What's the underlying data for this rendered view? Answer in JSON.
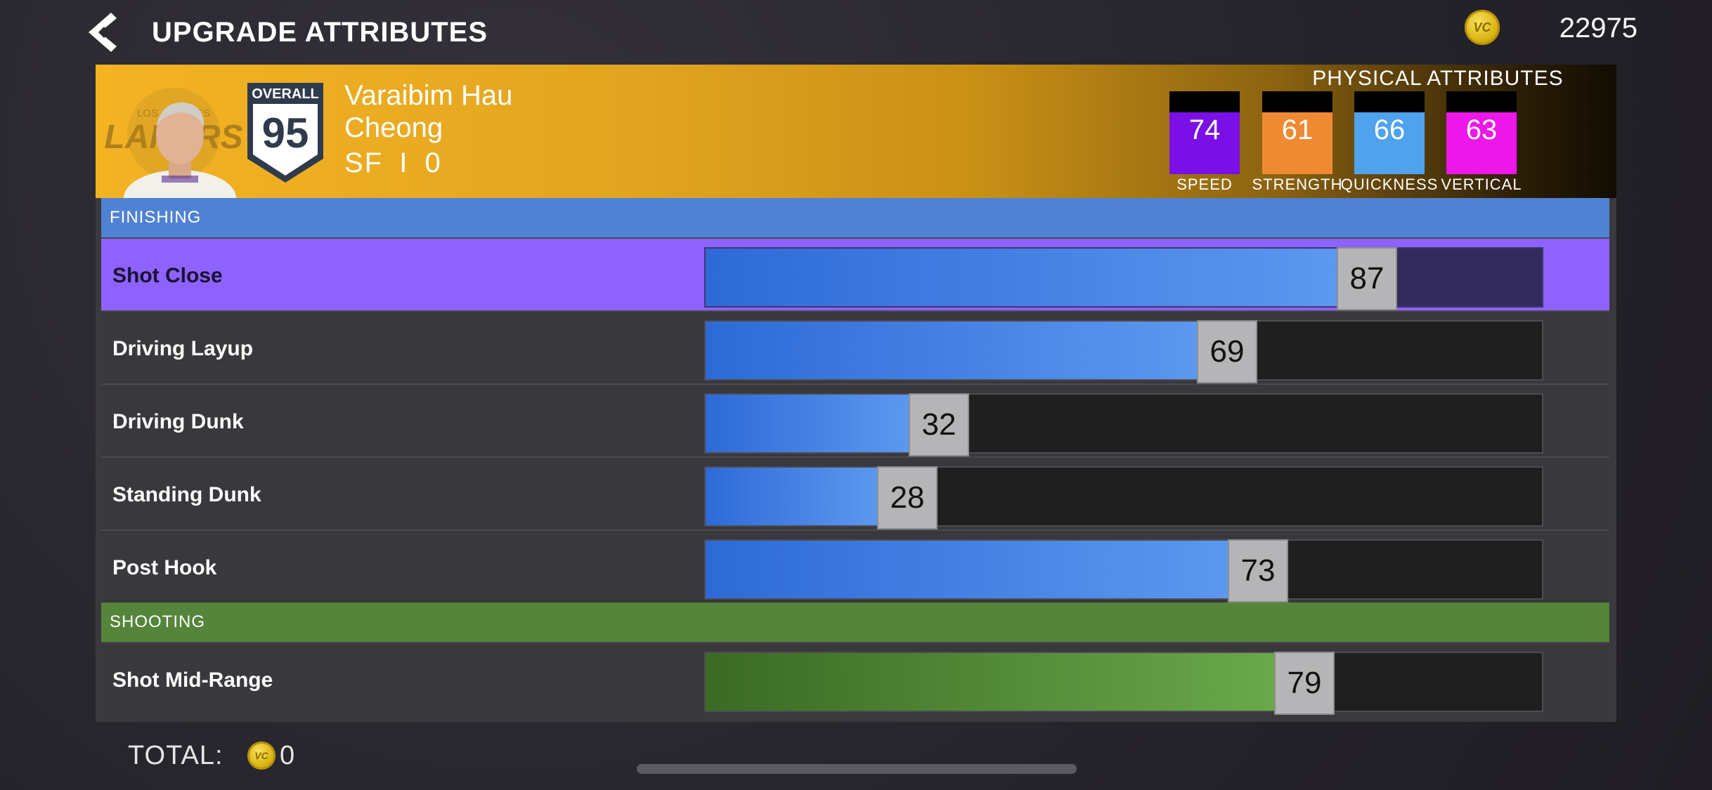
{
  "header": {
    "title": "UPGRADE ATTRIBUTES",
    "vc_balance": "22975",
    "vc_icon_text": "VC"
  },
  "player": {
    "overall_label": "OVERALL",
    "overall": "95",
    "first_name": "Varaibim Hau",
    "last_name": "Cheong",
    "position": "SF",
    "separator": "I",
    "number": "0",
    "team_logo_text": "LAKERS",
    "team_logo_city": "LOS ANGELES"
  },
  "physical": {
    "title": "PHYSICAL ATTRIBUTES",
    "items": [
      {
        "label": "SPEED",
        "value": "74",
        "color": "#7b10e6"
      },
      {
        "label": "STRENGTH",
        "value": "61",
        "color": "#ef8a33"
      },
      {
        "label": "QUICKNESS",
        "value": "66",
        "color": "#4fa3ec"
      },
      {
        "label": "VERTICAL",
        "value": "63",
        "color": "#ec17e8"
      }
    ]
  },
  "categories": {
    "finishing": {
      "label": "FINISHING",
      "color": "#4f82d3"
    },
    "shooting": {
      "label": "SHOOTING",
      "color": "#54853a"
    }
  },
  "attributes": [
    {
      "label": "Shot Close",
      "value": "87",
      "fraction": 0.87,
      "category": "finishing",
      "selected": true
    },
    {
      "label": "Driving Layup",
      "value": "69",
      "fraction": 0.69,
      "category": "finishing",
      "selected": false
    },
    {
      "label": "Driving Dunk",
      "value": "32",
      "fraction": 0.32,
      "category": "finishing",
      "selected": false
    },
    {
      "label": "Standing Dunk",
      "value": "28",
      "fraction": 0.28,
      "category": "finishing",
      "selected": false
    },
    {
      "label": "Post Hook",
      "value": "73",
      "fraction": 0.73,
      "category": "finishing",
      "selected": false
    },
    {
      "label": "Shot Mid-Range",
      "value": "79",
      "fraction": 0.79,
      "category": "shooting",
      "selected": false
    }
  ],
  "footer": {
    "total_label": "TOTAL:",
    "total_value": "0",
    "vc_icon_text": "VC"
  }
}
